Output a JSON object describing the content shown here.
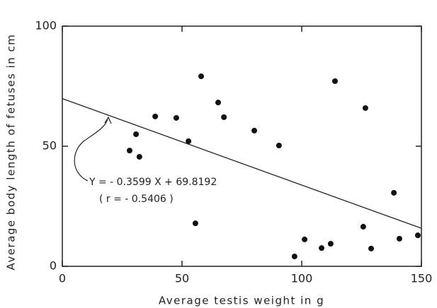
{
  "chart_data": {
    "type": "scatter",
    "x_label": "Average testis weight in g",
    "y_label": "Average body length of fetuses in cm",
    "x": [
      28.1,
      30.8,
      32.2,
      38.8,
      47.6,
      52.7,
      58.0,
      55.6,
      65.1,
      67.5,
      80.2,
      90.5,
      97.0,
      101.2,
      113.9,
      108.3,
      112.1,
      126.6,
      125.7,
      129.0,
      138.5,
      140.8,
      148.5
    ],
    "values": [
      48.2,
      55.0,
      45.6,
      62.4,
      61.8,
      52.1,
      79.1,
      17.9,
      68.2,
      62.1,
      56.5,
      50.3,
      4.1,
      11.2,
      77.1,
      7.6,
      9.4,
      65.9,
      16.5,
      7.4,
      30.6,
      11.5,
      12.9
    ],
    "color": "#111111",
    "fit": {
      "slope": -0.3599,
      "intercept": 69.8192
    },
    "annotations": [
      "Y = - 0.3599 X + 69.8192",
      "( r = - 0.5406 )"
    ],
    "xlim": [
      0,
      150
    ],
    "xticks": [
      0,
      50,
      100,
      150
    ],
    "ylim": [
      0,
      100
    ],
    "yticks": [
      0,
      50,
      100
    ]
  }
}
